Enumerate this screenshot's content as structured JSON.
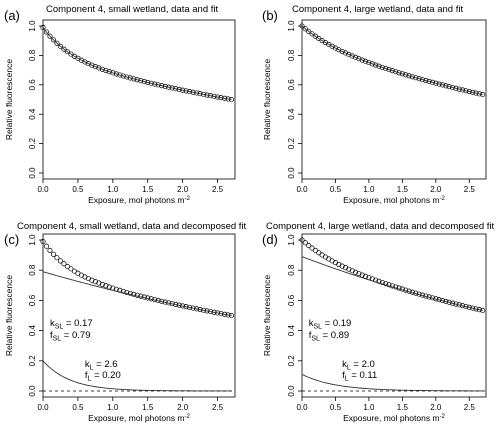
{
  "chart_data": [
    {
      "panel_label": "(a)",
      "type": "scatter",
      "title": "Component 4, small wetland, data and fit",
      "xlabel": "Exposure, mol photons m",
      "xlabel_sup": "-2",
      "ylabel": "Relative fluorescence",
      "xlim": [
        0,
        2.75
      ],
      "ylim": [
        0,
        1.0
      ],
      "xticks": [
        "0.0",
        "0.5",
        "1.0",
        "1.5",
        "2.0",
        "2.5"
      ],
      "yticks": [
        "0.0",
        "0.2",
        "0.4",
        "0.6",
        "0.8",
        "1.0"
      ],
      "decomposed": false,
      "series": [
        {
          "kind": "points",
          "x_start": 0,
          "x_end": 2.7,
          "n": 55,
          "a_slow": 0.79,
          "k_slow": 0.17,
          "a_fast": 0.2,
          "k_fast": 2.6
        },
        {
          "kind": "fit",
          "x_start": 0,
          "x_end": 2.7,
          "a_slow": 0.79,
          "k_slow": 0.17,
          "a_fast": 0.2,
          "k_fast": 2.6
        }
      ],
      "annotations": []
    },
    {
      "panel_label": "(b)",
      "type": "scatter",
      "title": "Component 4, large wetland, data and fit",
      "xlabel": "Exposure, mol photons m",
      "xlabel_sup": "-2",
      "ylabel": "Relative fluorescence",
      "xlim": [
        0,
        2.75
      ],
      "ylim": [
        0,
        1.0
      ],
      "xticks": [
        "0.0",
        "0.5",
        "1.0",
        "1.5",
        "2.0",
        "2.5"
      ],
      "yticks": [
        "0.0",
        "0.2",
        "0.4",
        "0.6",
        "0.8",
        "1.0"
      ],
      "decomposed": false,
      "series": [
        {
          "kind": "points",
          "x_start": 0,
          "x_end": 2.7,
          "n": 55,
          "a_slow": 0.89,
          "k_slow": 0.19,
          "a_fast": 0.11,
          "k_fast": 2.0
        },
        {
          "kind": "fit",
          "x_start": 0,
          "x_end": 2.7,
          "a_slow": 0.89,
          "k_slow": 0.19,
          "a_fast": 0.11,
          "k_fast": 2.0
        }
      ],
      "annotations": []
    },
    {
      "panel_label": "(c)",
      "type": "scatter",
      "title": "Component 4, small wetland, data and decomposed fit",
      "xlabel": "Exposure, mol photons m",
      "xlabel_sup": "-2",
      "ylabel": "Relative fluorescence",
      "xlim": [
        0,
        2.75
      ],
      "ylim": [
        0,
        1.0
      ],
      "xticks": [
        "0.0",
        "0.5",
        "1.0",
        "1.5",
        "2.0",
        "2.5"
      ],
      "yticks": [
        "0.0",
        "0.2",
        "0.4",
        "0.6",
        "0.8",
        "1.0"
      ],
      "decomposed": true,
      "series": [
        {
          "kind": "points",
          "x_start": 0,
          "x_end": 2.7,
          "n": 55,
          "a_slow": 0.79,
          "k_slow": 0.17,
          "a_fast": 0.2,
          "k_fast": 2.6
        },
        {
          "kind": "slow",
          "x_start": 0,
          "x_end": 2.7,
          "a": 0.79,
          "k": 0.17
        },
        {
          "kind": "fast",
          "x_start": 0,
          "x_end": 2.7,
          "a": 0.2,
          "k": 2.6
        },
        {
          "kind": "baseline",
          "y": 0
        }
      ],
      "annotations": [
        {
          "k": "k",
          "sub": "SL",
          "rest": " = 0.17",
          "x": 0.1,
          "y": 0.43
        },
        {
          "k": "f",
          "sub": "SL",
          "rest": " = 0.79",
          "x": 0.1,
          "y": 0.35
        },
        {
          "k": "k",
          "sub": "L",
          "rest": " = 2.6",
          "x": 0.6,
          "y": 0.16
        },
        {
          "k": "f",
          "sub": "L",
          "rest": " = 0.20",
          "x": 0.6,
          "y": 0.085
        }
      ]
    },
    {
      "panel_label": "(d)",
      "type": "scatter",
      "title": "Component 4, large wetland, data and decomposed fit",
      "xlabel": "Exposure, mol photons m",
      "xlabel_sup": "-2",
      "ylabel": "Relative fluorescence",
      "xlim": [
        0,
        2.75
      ],
      "ylim": [
        0,
        1.0
      ],
      "xticks": [
        "0.0",
        "0.5",
        "1.0",
        "1.5",
        "2.0",
        "2.5"
      ],
      "yticks": [
        "0.0",
        "0.2",
        "0.4",
        "0.6",
        "0.8",
        "1.0"
      ],
      "decomposed": true,
      "series": [
        {
          "kind": "points",
          "x_start": 0,
          "x_end": 2.7,
          "n": 55,
          "a_slow": 0.89,
          "k_slow": 0.19,
          "a_fast": 0.11,
          "k_fast": 2.0
        },
        {
          "kind": "slow",
          "x_start": 0,
          "x_end": 2.7,
          "a": 0.89,
          "k": 0.19
        },
        {
          "kind": "fast",
          "x_start": 0,
          "x_end": 2.7,
          "a": 0.11,
          "k": 2.0
        },
        {
          "kind": "baseline",
          "y": 0
        }
      ],
      "annotations": [
        {
          "k": "k",
          "sub": "SL",
          "rest": " = 0.19",
          "x": 0.1,
          "y": 0.43
        },
        {
          "k": "f",
          "sub": "SL",
          "rest": " = 0.89",
          "x": 0.1,
          "y": 0.35
        },
        {
          "k": "k",
          "sub": "L",
          "rest": " = 2.0",
          "x": 0.6,
          "y": 0.16
        },
        {
          "k": "f",
          "sub": "L",
          "rest": " = 0.11",
          "x": 0.6,
          "y": 0.085
        }
      ]
    }
  ]
}
